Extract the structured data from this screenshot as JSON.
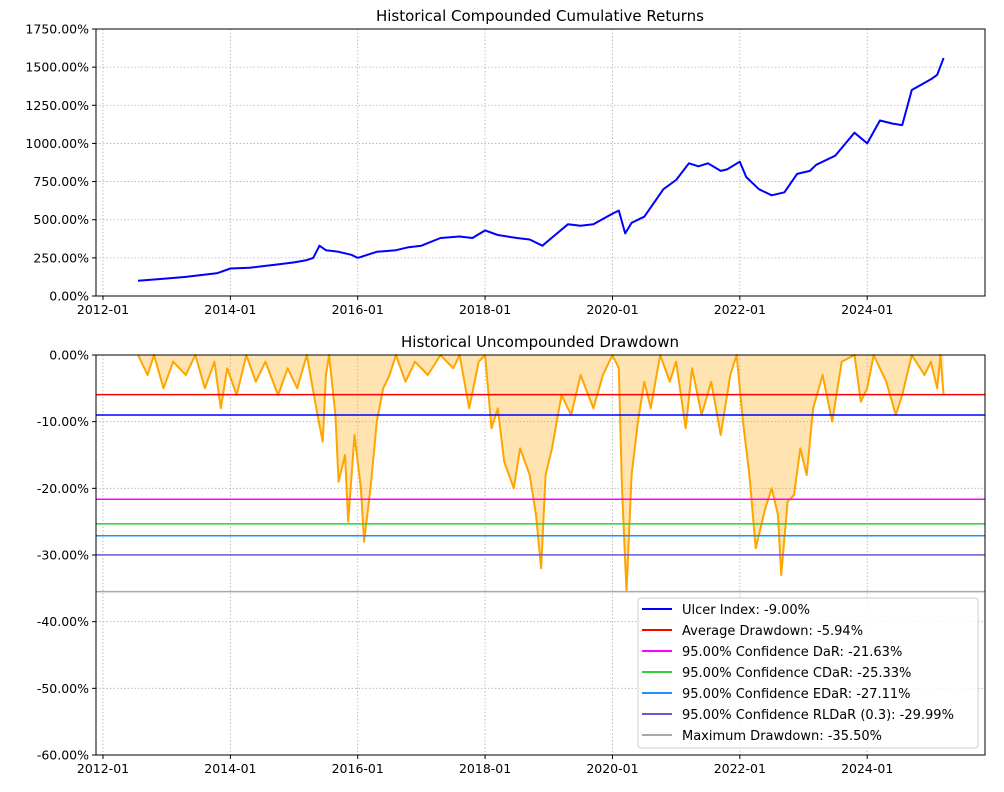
{
  "chart_data": [
    {
      "type": "line",
      "title": "Historical Compounded Cumulative Returns",
      "xlabel": "",
      "ylabel": "",
      "xlim": [
        2011.89,
        2025.85
      ],
      "ylim": [
        0,
        1750
      ],
      "grid": true,
      "x_ticks": [
        "2012-01",
        "2014-01",
        "2016-01",
        "2018-01",
        "2020-01",
        "2022-01",
        "2024-01"
      ],
      "y_ticks": [
        "0.00%",
        "250.00%",
        "500.00%",
        "750.00%",
        "1000.00%",
        "1250.00%",
        "1500.00%",
        "1750.00%"
      ],
      "series": [
        {
          "name": "Cumulative Returns",
          "color": "#0000ff",
          "x": [
            2012.55,
            2012.8,
            2013.0,
            2013.3,
            2013.5,
            2013.8,
            2014.0,
            2014.3,
            2014.5,
            2014.8,
            2015.0,
            2015.2,
            2015.3,
            2015.4,
            2015.5,
            2015.7,
            2015.9,
            2016.0,
            2016.3,
            2016.6,
            2016.8,
            2017.0,
            2017.3,
            2017.6,
            2017.8,
            2018.0,
            2018.2,
            2018.5,
            2018.7,
            2018.9,
            2019.1,
            2019.3,
            2019.5,
            2019.7,
            2020.0,
            2020.1,
            2020.2,
            2020.3,
            2020.5,
            2020.8,
            2021.0,
            2021.2,
            2021.35,
            2021.5,
            2021.7,
            2021.8,
            2022.0,
            2022.1,
            2022.3,
            2022.5,
            2022.7,
            2022.9,
            2023.1,
            2023.2,
            2023.5,
            2023.8,
            2024.0,
            2024.2,
            2024.4,
            2024.55,
            2024.7,
            2025.0,
            2025.1,
            2025.2
          ],
          "y": [
            100,
            108,
            115,
            125,
            135,
            150,
            180,
            185,
            195,
            210,
            220,
            235,
            250,
            330,
            300,
            290,
            270,
            250,
            290,
            300,
            320,
            330,
            380,
            390,
            380,
            430,
            400,
            380,
            370,
            330,
            400,
            470,
            460,
            470,
            540,
            560,
            410,
            480,
            520,
            700,
            760,
            870,
            850,
            870,
            820,
            830,
            880,
            780,
            700,
            660,
            680,
            800,
            820,
            860,
            920,
            1070,
            1000,
            1150,
            1130,
            1120,
            1350,
            1420,
            1450,
            1560
          ]
        }
      ]
    },
    {
      "type": "area",
      "title": "Historical Uncompounded Drawdown",
      "xlabel": "",
      "ylabel": "",
      "xlim": [
        2011.89,
        2025.85
      ],
      "ylim": [
        -60,
        0
      ],
      "grid": true,
      "x_ticks": [
        "2012-01",
        "2014-01",
        "2016-01",
        "2018-01",
        "2020-01",
        "2022-01",
        "2024-01"
      ],
      "y_ticks": [
        "0.00%",
        "-10.00%",
        "-20.00%",
        "-30.00%",
        "-40.00%",
        "-50.00%",
        "-60.00%"
      ],
      "series": [
        {
          "name": "Drawdown",
          "color": "#ffa500",
          "x": [
            2012.55,
            2012.7,
            2012.8,
            2012.95,
            2013.1,
            2013.3,
            2013.45,
            2013.6,
            2013.75,
            2013.85,
            2013.95,
            2014.1,
            2014.25,
            2014.4,
            2014.55,
            2014.75,
            2014.9,
            2015.05,
            2015.2,
            2015.35,
            2015.45,
            2015.5,
            2015.55,
            2015.65,
            2015.7,
            2015.8,
            2015.85,
            2015.95,
            2016.05,
            2016.1,
            2016.2,
            2016.3,
            2016.4,
            2016.5,
            2016.6,
            2016.75,
            2016.9,
            2017.1,
            2017.3,
            2017.5,
            2017.6,
            2017.75,
            2017.9,
            2018.0,
            2018.1,
            2018.2,
            2018.3,
            2018.45,
            2018.55,
            2018.7,
            2018.8,
            2018.88,
            2018.95,
            2019.05,
            2019.2,
            2019.35,
            2019.5,
            2019.7,
            2019.85,
            2020.0,
            2020.1,
            2020.15,
            2020.22,
            2020.3,
            2020.4,
            2020.5,
            2020.6,
            2020.75,
            2020.9,
            2021.0,
            2021.15,
            2021.25,
            2021.4,
            2021.55,
            2021.7,
            2021.85,
            2021.95,
            2022.05,
            2022.15,
            2022.25,
            2022.4,
            2022.5,
            2022.6,
            2022.65,
            2022.75,
            2022.85,
            2022.95,
            2023.05,
            2023.15,
            2023.3,
            2023.45,
            2023.6,
            2023.8,
            2023.9,
            2024.0,
            2024.1,
            2024.3,
            2024.45,
            2024.55,
            2024.7,
            2024.9,
            2025.0,
            2025.1,
            2025.15,
            2025.2
          ],
          "y": [
            0,
            -3,
            0,
            -5,
            -1,
            -3,
            0,
            -5,
            -1,
            -8,
            -2,
            -6,
            0,
            -4,
            -1,
            -6,
            -2,
            -5,
            0,
            -8,
            -13,
            -3,
            0,
            -9,
            -19,
            -15,
            -25,
            -12,
            -20,
            -28,
            -20,
            -10,
            -5,
            -3,
            0,
            -4,
            -1,
            -3,
            0,
            -2,
            0,
            -8,
            -1,
            0,
            -11,
            -8,
            -16,
            -20,
            -14,
            -18,
            -24,
            -32,
            -18,
            -14,
            -6,
            -9,
            -3,
            -8,
            -3,
            0,
            -2,
            -20,
            -35.5,
            -18,
            -10,
            -4,
            -8,
            0,
            -4,
            -1,
            -11,
            -2,
            -9,
            -4,
            -12,
            -3,
            0,
            -10,
            -18,
            -29,
            -23,
            -20,
            -24,
            -33,
            -22,
            -21,
            -14,
            -18,
            -8,
            -3,
            -10,
            -1,
            0,
            -7,
            -5,
            0,
            -4,
            -9,
            -6,
            0,
            -3,
            -1,
            -5,
            0,
            -6
          ]
        }
      ],
      "hlines": [
        {
          "label": "Ulcer Index: -9.00%",
          "value": -9.0,
          "color": "#0000ff"
        },
        {
          "label": "Average Drawdown: -5.94%",
          "value": -5.94,
          "color": "#ff0000"
        },
        {
          "label": "95.00% Confidence DaR: -21.63%",
          "value": -21.63,
          "color": "#ff00ff"
        },
        {
          "label": "95.00% Confidence CDaR: -25.33%",
          "value": -25.33,
          "color": "#32cd32"
        },
        {
          "label": "95.00% Confidence EDaR: -27.11%",
          "value": -27.11,
          "color": "#1e90ff"
        },
        {
          "label": "95.00% Confidence RLDaR (0.3): -29.99%",
          "value": -29.99,
          "color": "#6a5acd"
        },
        {
          "label": "Maximum Drawdown: -35.50%",
          "value": -35.5,
          "color": "#a9a9a9"
        }
      ],
      "legend": "lower-right"
    }
  ]
}
